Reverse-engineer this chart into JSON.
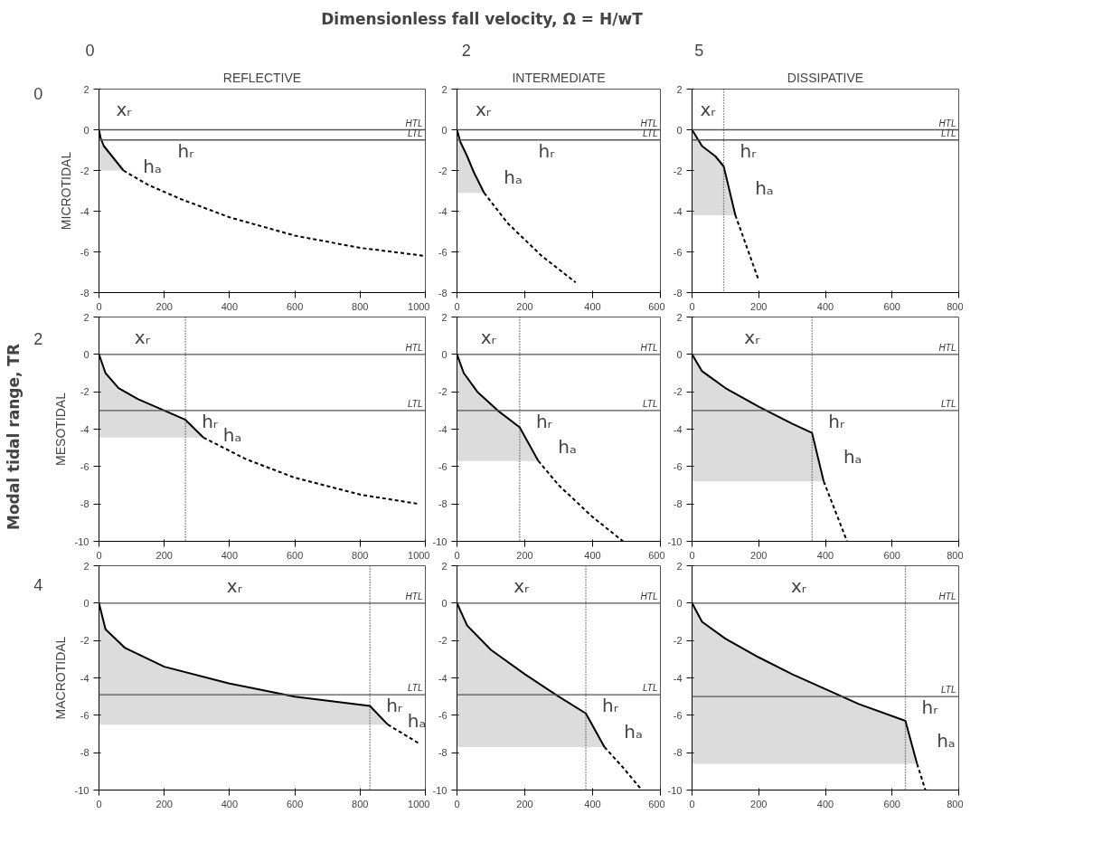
{
  "chart_data": [
    {
      "type": "other",
      "title": "Dimensionless fall velocity, Ω = H/wT",
      "annotations": [
        "0",
        "2",
        "5"
      ]
    },
    {
      "type": "other",
      "ylabel": "Modal tidal range, TR",
      "annotations": [
        "0",
        "2",
        "4"
      ]
    },
    {
      "type": "line",
      "title": "REFLECTIVE",
      "ylabel": "MICROTIDAL",
      "xlim": [
        0,
        1000
      ],
      "xticks": [
        0,
        200,
        400,
        600,
        800,
        1000
      ],
      "ylim": [
        -8,
        2
      ],
      "yticks": [
        -8,
        -6,
        -4,
        -2,
        0,
        2
      ],
      "series": [
        {
          "color": "#000000",
          "line_style": "solid",
          "x": [
            0,
            5,
            15,
            40,
            75
          ],
          "values": [
            0,
            -0.4,
            -0.8,
            -1.3,
            -2.0
          ],
          "lower": [
            -2,
            -2,
            -2,
            -2,
            -2
          ],
          "upper": [
            0,
            -0.4,
            -0.8,
            -1.3,
            -2.0
          ]
        },
        {
          "color": "#000000",
          "line_style": "dashed",
          "x": [
            75,
            150,
            250,
            400,
            600,
            800,
            1000
          ],
          "values": [
            -2.0,
            -2.7,
            -3.4,
            -4.3,
            -5.2,
            -5.8,
            -6.2
          ]
        }
      ],
      "ref_lines": [
        {
          "axis": "y",
          "value": 0,
          "label": "HTL",
          "color": "#555555"
        },
        {
          "axis": "y",
          "value": -0.5,
          "label": "LTL",
          "color": "#555555"
        }
      ],
      "annotations": [
        "xᵣ",
        "hₐ",
        "hᵣ"
      ]
    },
    {
      "type": "line",
      "title": "INTERMEDIATE",
      "xlim": [
        0,
        600
      ],
      "xticks": [
        0,
        200,
        400,
        600
      ],
      "ylim": [
        -8,
        2
      ],
      "yticks": [
        -8,
        -6,
        -4,
        -2,
        0,
        2
      ],
      "series": [
        {
          "color": "#000000",
          "line_style": "solid",
          "x": [
            0,
            10,
            30,
            50,
            80
          ],
          "values": [
            0,
            -0.6,
            -1.3,
            -2.1,
            -3.1
          ],
          "lower": [
            -3.1,
            -3.1,
            -3.1,
            -3.1,
            -3.1
          ],
          "upper": [
            0,
            -0.6,
            -1.3,
            -2.1,
            -3.1
          ]
        },
        {
          "color": "#000000",
          "line_style": "dashed",
          "x": [
            80,
            150,
            250,
            350
          ],
          "values": [
            -3.1,
            -4.6,
            -6.2,
            -7.5
          ]
        }
      ],
      "ref_lines": [
        {
          "axis": "y",
          "value": 0,
          "label": "HTL",
          "color": "#555555"
        },
        {
          "axis": "y",
          "value": -0.5,
          "label": "LTL",
          "color": "#555555"
        }
      ],
      "annotations": [
        "xᵣ",
        "hₐ",
        "hᵣ"
      ]
    },
    {
      "type": "line",
      "title": "DISSIPATIVE",
      "xlim": [
        0,
        800
      ],
      "xticks": [
        0,
        200,
        400,
        600,
        800
      ],
      "ylim": [
        -8,
        2
      ],
      "yticks": [
        -8,
        -6,
        -4,
        -2,
        0,
        2
      ],
      "series": [
        {
          "color": "#000000",
          "line_style": "solid",
          "x": [
            0,
            30,
            70,
            95,
            130
          ],
          "values": [
            0,
            -0.8,
            -1.3,
            -1.8,
            -4.2
          ],
          "lower": [
            -4.2,
            -4.2,
            -4.2,
            -4.2,
            -4.2
          ],
          "upper": [
            0,
            -0.8,
            -1.3,
            -1.8,
            -4.2
          ]
        },
        {
          "color": "#000000",
          "line_style": "dashed",
          "x": [
            130,
            165,
            200
          ],
          "values": [
            -4.2,
            -5.8,
            -7.4
          ]
        }
      ],
      "ref_lines": [
        {
          "axis": "y",
          "value": 0,
          "label": "HTL",
          "color": "#555555"
        },
        {
          "axis": "y",
          "value": -0.5,
          "label": "LTL",
          "color": "#555555"
        },
        {
          "axis": "x",
          "value": 95,
          "label": null,
          "line_style": "dotted",
          "color": "#333333"
        }
      ],
      "annotations": [
        "xᵣ",
        "hₐ",
        "hᵣ"
      ]
    },
    {
      "type": "line",
      "ylabel": "MESOTIDAL",
      "xlim": [
        0,
        1000
      ],
      "xticks": [
        0,
        200,
        400,
        600,
        800,
        1000
      ],
      "ylim": [
        -10,
        2
      ],
      "yticks": [
        -10,
        -8,
        -6,
        -4,
        -2,
        0,
        2
      ],
      "series": [
        {
          "color": "#000000",
          "line_style": "solid",
          "x": [
            0,
            20,
            60,
            120,
            200,
            265,
            320
          ],
          "values": [
            0,
            -1.0,
            -1.8,
            -2.4,
            -3.0,
            -3.5,
            -4.45
          ],
          "lower": [
            -4.45,
            -4.45,
            -4.45,
            -4.45,
            -4.45,
            -4.45,
            -4.45
          ],
          "upper": [
            0,
            -1.0,
            -1.8,
            -2.4,
            -3.0,
            -3.5,
            -4.45
          ]
        },
        {
          "color": "#000000",
          "line_style": "dashed",
          "x": [
            320,
            450,
            600,
            800,
            980
          ],
          "values": [
            -4.45,
            -5.6,
            -6.6,
            -7.5,
            -8.0
          ]
        }
      ],
      "ref_lines": [
        {
          "axis": "y",
          "value": 0,
          "label": "HTL",
          "color": "#555555"
        },
        {
          "axis": "y",
          "value": -3,
          "label": "LTL",
          "color": "#555555"
        },
        {
          "axis": "x",
          "value": 265,
          "label": null,
          "line_style": "dotted",
          "color": "#333333"
        }
      ],
      "annotations": [
        "xᵣ",
        "hₐ",
        "hᵣ"
      ]
    },
    {
      "type": "line",
      "xlim": [
        0,
        600
      ],
      "xticks": [
        0,
        200,
        400,
        600
      ],
      "ylim": [
        -10,
        2
      ],
      "yticks": [
        -10,
        -8,
        -6,
        -4,
        -2,
        0,
        2
      ],
      "series": [
        {
          "color": "#000000",
          "line_style": "solid",
          "x": [
            0,
            20,
            60,
            120,
            185,
            240
          ],
          "values": [
            0,
            -1.0,
            -2.0,
            -3.0,
            -3.9,
            -5.7
          ],
          "lower": [
            -5.7,
            -5.7,
            -5.7,
            -5.7,
            -5.7,
            -5.7
          ],
          "upper": [
            0,
            -1.0,
            -2.0,
            -3.0,
            -3.9,
            -5.7
          ]
        },
        {
          "color": "#000000",
          "line_style": "dashed",
          "x": [
            240,
            300,
            400,
            490
          ],
          "values": [
            -5.7,
            -7.0,
            -8.7,
            -10
          ]
        }
      ],
      "ref_lines": [
        {
          "axis": "y",
          "value": 0,
          "label": "HTL",
          "color": "#555555"
        },
        {
          "axis": "y",
          "value": -3,
          "label": "LTL",
          "color": "#555555"
        },
        {
          "axis": "x",
          "value": 185,
          "label": null,
          "line_style": "dotted",
          "color": "#333333"
        }
      ],
      "annotations": [
        "xᵣ",
        "hₐ",
        "hᵣ"
      ]
    },
    {
      "type": "line",
      "xlim": [
        0,
        800
      ],
      "xticks": [
        0,
        200,
        400,
        600,
        800
      ],
      "ylim": [
        -10,
        2
      ],
      "yticks": [
        -10,
        -8,
        -6,
        -4,
        -2,
        0,
        2
      ],
      "series": [
        {
          "color": "#000000",
          "line_style": "solid",
          "x": [
            0,
            30,
            100,
            200,
            300,
            360,
            395
          ],
          "values": [
            0,
            -0.9,
            -1.8,
            -2.8,
            -3.7,
            -4.2,
            -6.8
          ],
          "lower": [
            -6.8,
            -6.8,
            -6.8,
            -6.8,
            -6.8,
            -6.8,
            -6.8
          ],
          "upper": [
            0,
            -0.9,
            -1.8,
            -2.8,
            -3.7,
            -4.2,
            -6.8
          ]
        },
        {
          "color": "#000000",
          "line_style": "dashed",
          "x": [
            395,
            430,
            465
          ],
          "values": [
            -6.8,
            -8.4,
            -10
          ]
        }
      ],
      "ref_lines": [
        {
          "axis": "y",
          "value": 0,
          "label": "HTL",
          "color": "#555555"
        },
        {
          "axis": "y",
          "value": -3,
          "label": "LTL",
          "color": "#555555"
        },
        {
          "axis": "x",
          "value": 360,
          "label": null,
          "line_style": "dotted",
          "color": "#333333"
        }
      ],
      "annotations": [
        "xᵣ",
        "hₐ",
        "hᵣ"
      ]
    },
    {
      "type": "line",
      "ylabel": "MACROTIDAL",
      "xlim": [
        0,
        1000
      ],
      "xticks": [
        0,
        200,
        400,
        600,
        800,
        1000
      ],
      "ylim": [
        -10,
        2
      ],
      "yticks": [
        -10,
        -8,
        -6,
        -4,
        -2,
        0,
        2
      ],
      "series": [
        {
          "color": "#000000",
          "line_style": "solid",
          "x": [
            0,
            20,
            80,
            200,
            400,
            600,
            830,
            885
          ],
          "values": [
            0,
            -1.4,
            -2.4,
            -3.4,
            -4.3,
            -5.0,
            -5.5,
            -6.5
          ],
          "lower": [
            -6.5,
            -6.5,
            -6.5,
            -6.5,
            -6.5,
            -6.5,
            -6.5,
            -6.5
          ],
          "upper": [
            0,
            -1.4,
            -2.4,
            -3.4,
            -4.3,
            -5.0,
            -5.5,
            -6.5
          ]
        },
        {
          "color": "#000000",
          "line_style": "dashed",
          "x": [
            885,
            980
          ],
          "values": [
            -6.5,
            -7.5
          ]
        }
      ],
      "ref_lines": [
        {
          "axis": "y",
          "value": 0,
          "label": "HTL",
          "color": "#555555"
        },
        {
          "axis": "y",
          "value": -4.9,
          "label": "LTL",
          "color": "#555555"
        },
        {
          "axis": "x",
          "value": 830,
          "label": null,
          "line_style": "dotted",
          "color": "#333333"
        }
      ],
      "annotations": [
        "xᵣ",
        "hₐ",
        "hᵣ"
      ]
    },
    {
      "type": "line",
      "xlim": [
        0,
        600
      ],
      "xticks": [
        0,
        200,
        400,
        600
      ],
      "ylim": [
        -10,
        2
      ],
      "yticks": [
        -10,
        -8,
        -6,
        -4,
        -2,
        0,
        2
      ],
      "series": [
        {
          "color": "#000000",
          "line_style": "solid",
          "x": [
            0,
            30,
            100,
            200,
            300,
            380,
            435
          ],
          "values": [
            0,
            -1.2,
            -2.5,
            -3.8,
            -5.0,
            -5.9,
            -7.7
          ],
          "lower": [
            -7.7,
            -7.7,
            -7.7,
            -7.7,
            -7.7,
            -7.7,
            -7.7
          ],
          "upper": [
            0,
            -1.2,
            -2.5,
            -3.8,
            -5.0,
            -5.9,
            -7.7
          ]
        },
        {
          "color": "#000000",
          "line_style": "dashed",
          "x": [
            435,
            490,
            545
          ],
          "values": [
            -7.7,
            -8.8,
            -10
          ]
        }
      ],
      "ref_lines": [
        {
          "axis": "y",
          "value": 0,
          "label": "HTL",
          "color": "#555555"
        },
        {
          "axis": "y",
          "value": -4.9,
          "label": "LTL",
          "color": "#555555"
        },
        {
          "axis": "x",
          "value": 380,
          "label": null,
          "line_style": "dotted",
          "color": "#333333"
        }
      ],
      "annotations": [
        "xᵣ",
        "hₐ",
        "hᵣ"
      ]
    },
    {
      "type": "line",
      "xlim": [
        0,
        800
      ],
      "xticks": [
        0,
        200,
        400,
        600,
        800
      ],
      "ylim": [
        -10,
        2
      ],
      "yticks": [
        -10,
        -8,
        -6,
        -4,
        -2,
        0,
        2
      ],
      "series": [
        {
          "color": "#000000",
          "line_style": "solid",
          "x": [
            0,
            30,
            100,
            200,
            300,
            400,
            500,
            640,
            675
          ],
          "values": [
            0,
            -1.0,
            -1.9,
            -2.9,
            -3.8,
            -4.6,
            -5.4,
            -6.3,
            -8.6
          ],
          "lower": [
            -8.6,
            -8.6,
            -8.6,
            -8.6,
            -8.6,
            -8.6,
            -8.6,
            -8.6,
            -8.6
          ],
          "upper": [
            0,
            -1.0,
            -1.9,
            -2.9,
            -3.8,
            -4.6,
            -5.4,
            -6.3,
            -8.6
          ]
        },
        {
          "color": "#000000",
          "line_style": "dashed",
          "x": [
            675,
            700
          ],
          "values": [
            -8.6,
            -10
          ]
        }
      ],
      "ref_lines": [
        {
          "axis": "y",
          "value": 0,
          "label": "HTL",
          "color": "#555555"
        },
        {
          "axis": "y",
          "value": -5,
          "label": "LTL",
          "color": "#555555"
        },
        {
          "axis": "x",
          "value": 640,
          "label": null,
          "line_style": "dotted",
          "color": "#333333"
        }
      ],
      "annotations": [
        "xᵣ",
        "hₐ",
        "hᵣ"
      ]
    }
  ]
}
